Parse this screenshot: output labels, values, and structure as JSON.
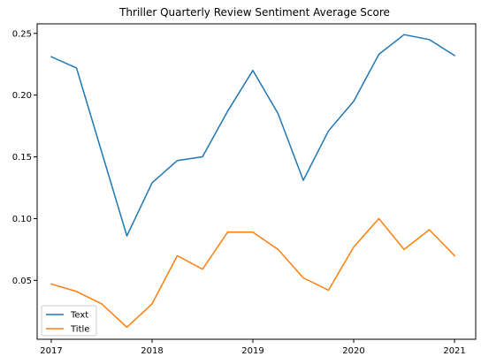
{
  "chart_data": {
    "type": "line",
    "title": "Thriller Quarterly Review Sentiment Average Score",
    "xlabel": "",
    "ylabel": "",
    "x": [
      2017.0,
      2017.25,
      2017.5,
      2017.75,
      2018.0,
      2018.25,
      2018.5,
      2018.75,
      2019.0,
      2019.25,
      2019.5,
      2019.75,
      2020.0,
      2020.25,
      2020.5,
      2020.75,
      2021.0
    ],
    "xticks": [
      2017,
      2018,
      2019,
      2020,
      2021
    ],
    "xtick_labels": [
      "2017",
      "2018",
      "2019",
      "2020",
      "2021"
    ],
    "yticks": [
      0.05,
      0.1,
      0.15,
      0.2,
      0.25
    ],
    "ytick_labels": [
      "0.05",
      "0.10",
      "0.15",
      "0.20",
      "0.25"
    ],
    "xlim": [
      2016.86,
      2021.21
    ],
    "ylim": [
      0.0023,
      0.2577
    ],
    "grid": false,
    "legend": "lower-left",
    "series": [
      {
        "name": "Text",
        "color": "#1f77b4",
        "values": [
          0.231,
          0.222,
          0.154,
          0.086,
          0.129,
          0.147,
          0.15,
          0.187,
          0.22,
          0.185,
          0.131,
          0.171,
          0.195,
          0.233,
          0.249,
          0.245,
          0.232
        ]
      },
      {
        "name": "Title",
        "color": "#ff7f0e",
        "values": [
          0.047,
          0.041,
          0.031,
          0.012,
          0.031,
          0.07,
          0.059,
          0.089,
          0.089,
          0.075,
          0.052,
          0.042,
          0.077,
          0.1,
          0.075,
          0.091,
          0.07
        ]
      }
    ]
  }
}
